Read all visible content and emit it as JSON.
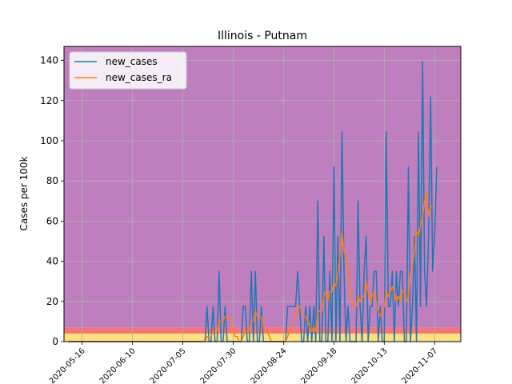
{
  "chart_data": {
    "type": "line",
    "title": "Illinois - Putnam",
    "xlabel": "",
    "ylabel": "Cases per 100k",
    "x_start": "2020-05-09",
    "x_end": "2020-11-14",
    "xlim": [
      "2020-05-07",
      "2020-11-20"
    ],
    "ylim": [
      0,
      147
    ],
    "grid": true,
    "legend_position": "top-left",
    "x_ticks": [
      "2020-05-16",
      "2020-06-10",
      "2020-07-05",
      "2020-07-30",
      "2020-08-24",
      "2020-09-18",
      "2020-10-13",
      "2020-11-07"
    ],
    "y_ticks": [
      0,
      20,
      40,
      60,
      80,
      100,
      120,
      140
    ],
    "bands": [
      {
        "from": 0,
        "to": 4,
        "color": "#fde080"
      },
      {
        "from": 4,
        "to": 7,
        "color": "#f2767a"
      },
      {
        "from": 7,
        "to": 147,
        "color": "#bf7fbf"
      }
    ],
    "series": [
      {
        "name": "new_cases",
        "color": "#1f77b4",
        "values": [
          0,
          0,
          0,
          0,
          0,
          0,
          0,
          0,
          0,
          0,
          0,
          0,
          0,
          0,
          0,
          0,
          0,
          0,
          0,
          0,
          0,
          0,
          0,
          0,
          0,
          0,
          0,
          0,
          0,
          0,
          0,
          0,
          0,
          0,
          0,
          0,
          0,
          0,
          0,
          0,
          0,
          0,
          0,
          0,
          0,
          0,
          0,
          0,
          0,
          0,
          0,
          0,
          0,
          0,
          0,
          0,
          0,
          0,
          0,
          0,
          0,
          0,
          0,
          0,
          0,
          0,
          0,
          0,
          0,
          17.5,
          0,
          0,
          17.5,
          0,
          0,
          35,
          0,
          0,
          17.5,
          0,
          0,
          0,
          0,
          0,
          0,
          0,
          0,
          17.5,
          17.5,
          0,
          0,
          35,
          0,
          35,
          0,
          0,
          17.5,
          0,
          0,
          0,
          0,
          0,
          0,
          0,
          0,
          0,
          0,
          0,
          0,
          17.5,
          17.5,
          17.5,
          17.5,
          17.5,
          35,
          17.5,
          0,
          0,
          17.5,
          0,
          17.5,
          0,
          17.5,
          0,
          70,
          0,
          0,
          52.5,
          0,
          0,
          35,
          0,
          87,
          0,
          52.5,
          0,
          104.5,
          35,
          0,
          17.5,
          0,
          0,
          0,
          0,
          70,
          17.5,
          0,
          35,
          52.5,
          0,
          17.5,
          17.5,
          35,
          35,
          0,
          17.5,
          0,
          0,
          104.5,
          17.5,
          17.5,
          35,
          0,
          35,
          17.5,
          35,
          35,
          0,
          0,
          87,
          0,
          17.5,
          52.5,
          0,
          104.5,
          17.5,
          139.5,
          35,
          17.5,
          52.5,
          122,
          35,
          52.5,
          87
        ]
      },
      {
        "name": "new_cases_ra",
        "color": "#ff7f0e",
        "values": [
          0,
          0,
          0,
          0,
          0,
          0,
          0,
          0,
          0,
          0,
          0,
          0,
          0,
          0,
          0,
          0,
          0,
          0,
          0,
          0,
          0,
          0,
          0,
          0,
          0,
          0,
          0,
          0,
          0,
          0,
          0,
          0,
          0,
          0,
          0,
          0,
          0,
          0,
          0,
          0,
          0,
          0,
          0,
          0,
          0,
          0,
          0,
          0,
          0,
          0,
          0,
          0,
          0,
          0,
          0,
          0,
          0,
          0,
          0,
          0,
          0,
          0,
          0,
          0,
          0,
          0,
          0,
          0,
          0,
          2.5,
          2.5,
          2.5,
          5,
          5,
          5,
          10,
          10,
          10,
          12.5,
          12.5,
          12.5,
          10,
          5,
          2.5,
          2.5,
          0,
          0,
          2.5,
          5,
          5,
          5,
          10,
          10,
          15,
          12.5,
          12.5,
          12.5,
          7.5,
          7.5,
          5,
          2.5,
          0,
          0,
          0,
          0,
          0,
          0,
          0,
          0,
          2.5,
          5,
          7.5,
          10,
          12.5,
          17.5,
          17.5,
          15,
          12.5,
          12.5,
          10,
          7.5,
          5,
          7.5,
          5,
          15,
          15,
          15,
          22.5,
          25,
          20,
          25,
          25,
          30,
          27.5,
          35,
          42.5,
          55,
          45,
          42.5,
          37.5,
          27.5,
          20,
          17.5,
          17.5,
          22.5,
          20,
          22.5,
          22.5,
          30,
          25,
          20,
          22.5,
          25,
          20,
          15,
          12.5,
          15,
          17.5,
          25,
          22.5,
          25,
          27.5,
          25,
          20,
          22.5,
          20,
          25,
          25,
          20,
          22.5,
          35,
          37.5,
          45,
          55,
          52.5,
          57.5,
          62.5,
          70,
          75,
          62.5,
          67.5,
          67.5
        ]
      }
    ]
  }
}
